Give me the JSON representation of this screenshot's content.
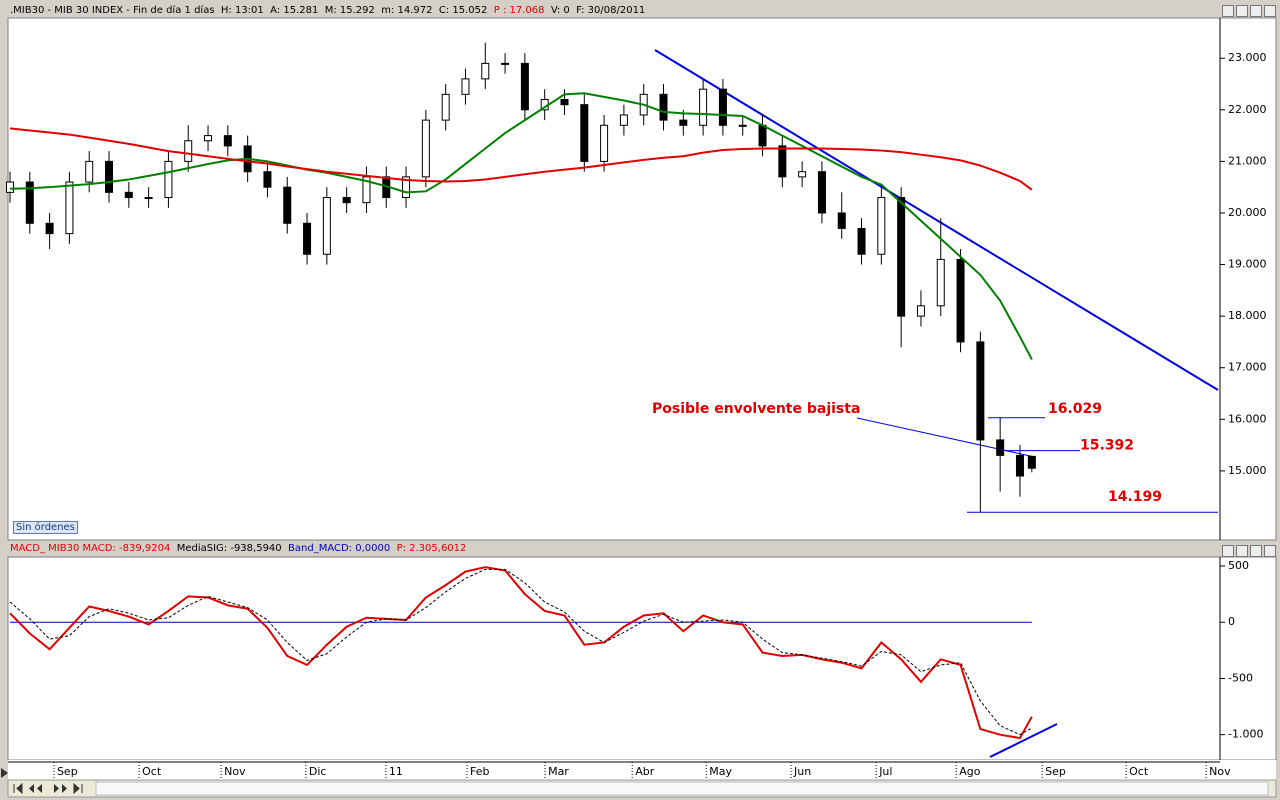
{
  "chart_data": [
    {
      "type": "candlestick",
      "title": ".MIB30 - MIB 30 INDEX - Fin de día 1 días  H: 13:01  A: 15.281  M: 15.292  m: 14.972  C: 15.052",
      "title_extra": "P : 17.068",
      "title_tail": "V: 0  F: 30/08/2011",
      "x": [
        0,
        5,
        10,
        15,
        20,
        25,
        30,
        35,
        40,
        45,
        50,
        55,
        60,
        65,
        70,
        75,
        80,
        85,
        90,
        95,
        100,
        105,
        110,
        115,
        120,
        125,
        130,
        135,
        140,
        145,
        150,
        155,
        160,
        165,
        170,
        175,
        180,
        185,
        190,
        195,
        200,
        205,
        210,
        215,
        220,
        225,
        230,
        235,
        240,
        245,
        250,
        255,
        258
      ],
      "open": [
        20400,
        20600,
        19800,
        19600,
        20600,
        21000,
        20400,
        20300,
        20300,
        21000,
        21400,
        21500,
        21300,
        20800,
        20500,
        19800,
        19200,
        20300,
        20200,
        20700,
        20300,
        20700,
        21800,
        22300,
        22600,
        22900,
        22900,
        22000,
        22200,
        22100,
        21000,
        21700,
        21900,
        22300,
        21800,
        21700,
        22400,
        21700,
        21700,
        21300,
        20700,
        20800,
        20000,
        19700,
        19200,
        20300,
        18000,
        18200,
        19100,
        17500,
        15600,
        15300,
        15281
      ],
      "high": [
        20800,
        20800,
        20000,
        20800,
        21200,
        21200,
        20600,
        20500,
        21200,
        21700,
        21700,
        21700,
        21500,
        21000,
        20700,
        20000,
        20500,
        20500,
        20900,
        20900,
        20900,
        22000,
        22500,
        22800,
        23300,
        23100,
        23100,
        22400,
        22400,
        22300,
        21900,
        22100,
        22500,
        22500,
        22000,
        22600,
        22600,
        21900,
        21900,
        21500,
        21000,
        21000,
        20400,
        19900,
        20500,
        20500,
        18500,
        19900,
        19300,
        17700,
        16029,
        15500,
        15292
      ],
      "low": [
        20200,
        19600,
        19300,
        19400,
        20400,
        20200,
        20100,
        20100,
        20100,
        20800,
        21200,
        21100,
        20600,
        20300,
        19600,
        19000,
        19000,
        20000,
        20000,
        20100,
        20100,
        20500,
        21600,
        22100,
        22400,
        22700,
        21800,
        21800,
        21900,
        20800,
        20800,
        21500,
        21700,
        21600,
        21500,
        21500,
        21500,
        21500,
        21100,
        20500,
        20500,
        19800,
        19500,
        19000,
        19000,
        17400,
        17800,
        18000,
        17300,
        14199,
        14600,
        14500,
        14972
      ],
      "close": [
        20600,
        19800,
        19600,
        20600,
        21000,
        20400,
        20300,
        20300,
        21000,
        21400,
        21500,
        21300,
        20800,
        20500,
        19800,
        19200,
        20300,
        20200,
        20700,
        20300,
        20700,
        21800,
        22300,
        22600,
        22900,
        22900,
        22000,
        22200,
        22100,
        21000,
        21700,
        21900,
        22300,
        21800,
        21700,
        22400,
        21700,
        21700,
        21300,
        20700,
        20800,
        20000,
        19700,
        19200,
        20300,
        18000,
        18200,
        19100,
        17500,
        15600,
        15300,
        14900,
        15052
      ],
      "up_color": "#ffffff",
      "down_color": "#000000",
      "moving_averages": [
        {
          "color": "#008000",
          "values": [
            20470,
            20480,
            20500,
            20530,
            20560,
            20600,
            20650,
            20720,
            20790,
            20870,
            20950,
            21020,
            21050,
            21000,
            20920,
            20840,
            20780,
            20700,
            20620,
            20520,
            20400,
            20420,
            20650,
            20950,
            21250,
            21550,
            21800,
            22050,
            22300,
            22320,
            22250,
            22180,
            22100,
            21960,
            21930,
            21920,
            21900,
            21880,
            21700,
            21500,
            21300,
            21100,
            20900,
            20700,
            20550,
            20200,
            19850,
            19500,
            19150,
            18800,
            18300,
            17600,
            17160
          ]
        },
        {
          "color": "#e00000",
          "values": [
            21640,
            21600,
            21560,
            21520,
            21460,
            21400,
            21340,
            21270,
            21200,
            21150,
            21100,
            21050,
            21000,
            20960,
            20900,
            20850,
            20800,
            20760,
            20720,
            20680,
            20640,
            20620,
            20610,
            20620,
            20650,
            20700,
            20750,
            20800,
            20840,
            20880,
            20930,
            20980,
            21030,
            21070,
            21100,
            21170,
            21220,
            21240,
            21250,
            21250,
            21250,
            21250,
            21240,
            21230,
            21210,
            21180,
            21130,
            21080,
            21020,
            20920,
            20780,
            20620,
            20450
          ]
        }
      ],
      "annotation": "Posible envolvente bajista",
      "levels": [
        {
          "value": 16029,
          "label": "16.029"
        },
        {
          "value": 15392,
          "label": "15.392"
        },
        {
          "value": 14199,
          "label": "14.199"
        }
      ],
      "xlim": [
        0,
        305
      ],
      "ylim": [
        13660,
        23780
      ],
      "yticks": [
        {
          "value": 15000,
          "label": "15.000"
        },
        {
          "value": 16000,
          "label": "16.000"
        },
        {
          "value": 17000,
          "label": "17.000"
        },
        {
          "value": 18000,
          "label": "18.000"
        },
        {
          "value": 19000,
          "label": "19.000"
        },
        {
          "value": 20000,
          "label": "20.000"
        },
        {
          "value": 21000,
          "label": "21.000"
        },
        {
          "value": 22000,
          "label": "22.000"
        },
        {
          "value": 23000,
          "label": "23.000"
        }
      ],
      "button": "Sin órdenes"
    },
    {
      "type": "line",
      "title": "MACD_ MIB30 MACD: -839,9204",
      "signal_label": "MediaSIG: -938,5940",
      "band_label": "Band_MACD: 0,0000",
      "p_label": "P: 2.305,6012",
      "x": [
        0,
        5,
        10,
        15,
        20,
        25,
        30,
        35,
        40,
        45,
        50,
        55,
        60,
        65,
        70,
        75,
        80,
        85,
        90,
        95,
        100,
        105,
        110,
        115,
        120,
        125,
        130,
        135,
        140,
        145,
        150,
        155,
        160,
        165,
        170,
        175,
        180,
        185,
        190,
        195,
        200,
        205,
        210,
        215,
        220,
        225,
        230,
        235,
        240,
        245,
        250,
        255,
        258
      ],
      "series": [
        {
          "color": "#e00000",
          "values": [
            80,
            -100,
            -240,
            -50,
            140,
            100,
            50,
            -20,
            100,
            230,
            220,
            150,
            120,
            -50,
            -300,
            -380,
            -200,
            -40,
            40,
            30,
            20,
            220,
            330,
            450,
            490,
            460,
            250,
            100,
            60,
            -200,
            -180,
            -40,
            60,
            80,
            -80,
            60,
            0,
            -20,
            -270,
            -300,
            -290,
            -330,
            -360,
            -410,
            -180,
            -330,
            -530,
            -330,
            -380,
            -950,
            -1000,
            -1030,
            -840
          ]
        },
        {
          "color": "#000000",
          "dashed": true,
          "values": [
            180,
            30,
            -150,
            -120,
            50,
            120,
            80,
            20,
            40,
            150,
            230,
            180,
            130,
            20,
            -180,
            -340,
            -280,
            -130,
            0,
            30,
            20,
            130,
            270,
            390,
            470,
            470,
            350,
            180,
            90,
            -80,
            -180,
            -90,
            10,
            70,
            0,
            10,
            20,
            0,
            -150,
            -270,
            -290,
            -320,
            -350,
            -390,
            -260,
            -290,
            -440,
            -380,
            -360,
            -700,
            -920,
            -1000,
            -940
          ]
        }
      ],
      "band": 0,
      "band_color": "#0000c0",
      "xlim": [
        0,
        305
      ],
      "ylim": [
        -1225,
        580
      ],
      "yticks": [
        500,
        0,
        -500,
        {
          "value": -1000,
          "label": "-1.000"
        }
      ],
      "xticks": [
        {
          "value": 11.1,
          "label": "Sep"
        },
        {
          "value": 32.6,
          "label": "Oct"
        },
        {
          "value": 53.3,
          "label": "Nov"
        },
        {
          "value": 74.7,
          "label": "Dic"
        },
        {
          "value": 94.9,
          "label": "11"
        },
        {
          "value": 115.4,
          "label": "Feb"
        },
        {
          "value": 135.1,
          "label": "Mar"
        },
        {
          "value": 157.1,
          "label": "Abr"
        },
        {
          "value": 175.8,
          "label": "May"
        },
        {
          "value": 197.2,
          "label": "Jun"
        },
        {
          "value": 218.7,
          "label": "Jul"
        },
        {
          "value": 238.9,
          "label": "Ago"
        },
        {
          "value": 260.6,
          "label": "Sep"
        },
        {
          "value": 281.8,
          "label": "Oct"
        },
        {
          "value": 302,
          "label": "Nov"
        }
      ]
    }
  ]
}
